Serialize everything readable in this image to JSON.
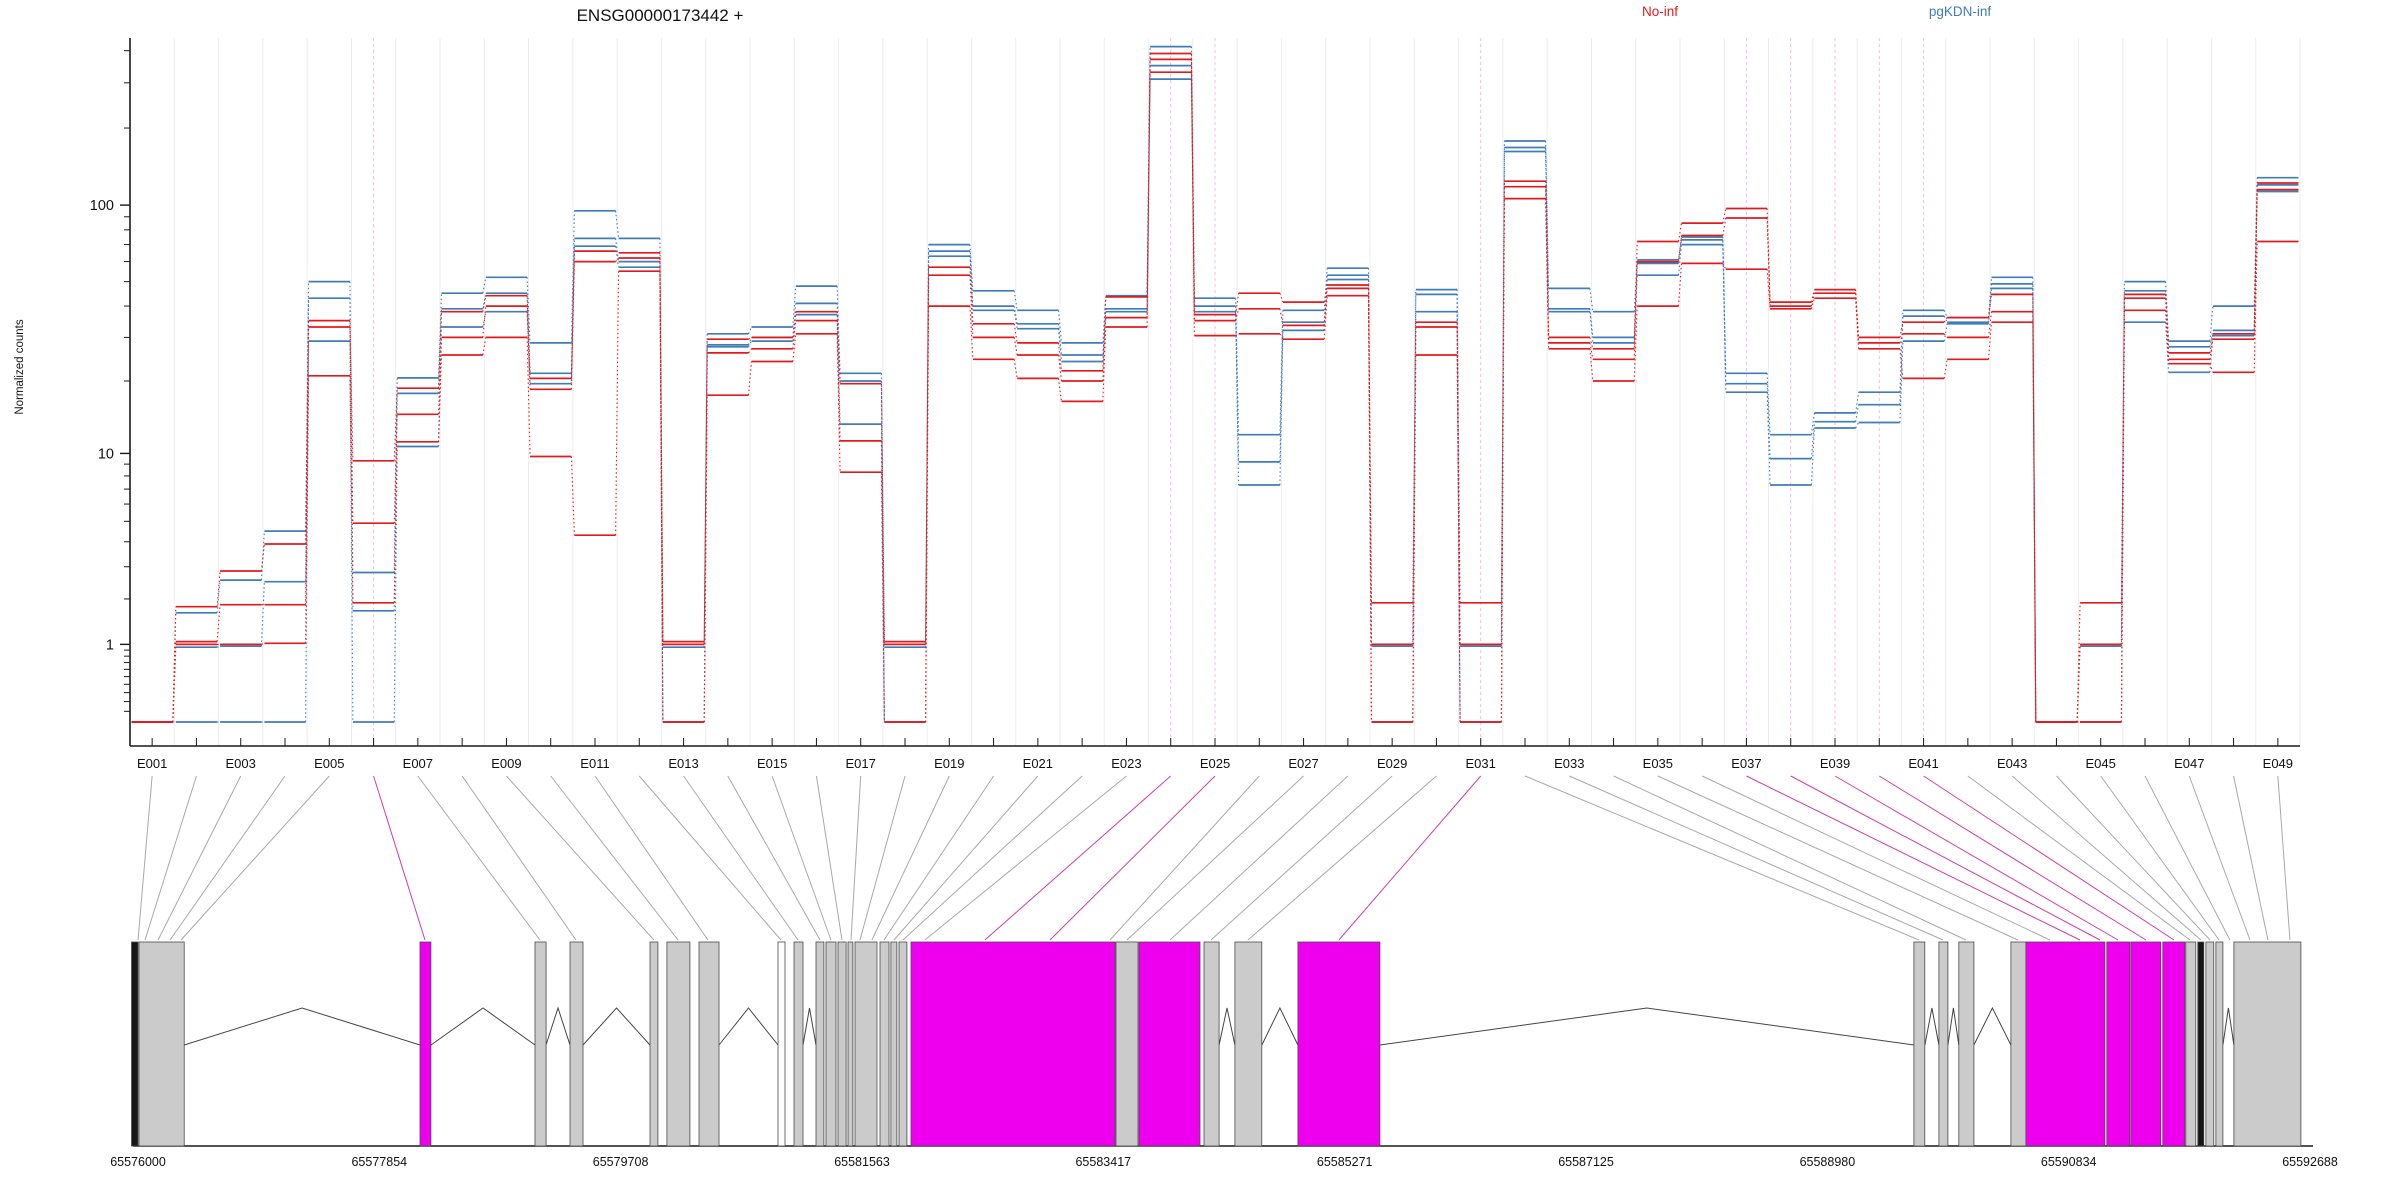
{
  "title": "ENSG00000173442 +",
  "legend": {
    "groups": [
      {
        "label": "No-inf",
        "color": "#e31a1c"
      },
      {
        "label": "pgKDN-inf",
        "color": "#3f7cba"
      }
    ]
  },
  "y_axis": {
    "label": "Normalized counts",
    "ticks": [
      1,
      10,
      100
    ],
    "scale": "log1p",
    "floor": 0,
    "max": 430
  },
  "chart_data": {
    "type": "line",
    "title": "ENSG00000173442 +",
    "xlabel": "exon bins",
    "ylabel": "Normalized counts",
    "ylim": [
      0,
      430
    ],
    "grid": "vertical",
    "legend_position": "top-right",
    "categories": [
      "E001",
      "E002",
      "E003",
      "E004",
      "E005",
      "E006",
      "E007",
      "E008",
      "E009",
      "E010",
      "E011",
      "E012",
      "E013",
      "E014",
      "E015",
      "E016",
      "E017",
      "E018",
      "E019",
      "E020",
      "E021",
      "E022",
      "E023",
      "E024",
      "E025",
      "E026",
      "E027",
      "E028",
      "E029",
      "E030",
      "E031",
      "E032",
      "E033",
      "E034",
      "E035",
      "E036",
      "E037",
      "E038",
      "E039",
      "E040",
      "E041",
      "E042",
      "E043",
      "E044",
      "E045",
      "E046",
      "E047",
      "E048",
      "E049"
    ],
    "label_every": 2,
    "significant_bins": [
      "E006",
      "E024",
      "E025",
      "E031",
      "E037",
      "E038",
      "E039",
      "E040",
      "E041"
    ],
    "series": [
      {
        "name": "No-inf sample 1",
        "group": "No-inf",
        "color": "#e31a1c",
        "values": [
          0,
          1.8,
          2.85,
          3.9,
          35,
          9.3,
          18.7,
          38,
          44,
          20.5,
          66,
          65,
          1.05,
          29.5,
          30,
          38,
          19.5,
          1.05,
          57,
          34,
          28.5,
          22,
          43.5,
          390,
          37,
          45,
          41.5,
          48.5,
          1.9,
          34.5,
          1.9,
          124,
          30,
          27,
          72,
          85,
          97,
          41.5,
          46.5,
          30,
          34.5,
          36,
          44.5,
          0,
          1.9,
          44.5,
          26,
          31,
          122
        ]
      },
      {
        "name": "No-inf sample 2",
        "group": "No-inf",
        "color": "#e31a1c",
        "values": [
          0,
          1.05,
          1.85,
          1.85,
          33,
          4.9,
          14.6,
          30,
          40,
          18.5,
          60,
          62,
          1.0,
          26,
          27,
          35,
          11.3,
          1.0,
          53,
          30,
          25.5,
          20,
          36,
          370,
          35,
          39,
          33.5,
          47,
          1.0,
          33,
          1.0,
          118,
          28.5,
          24.5,
          60,
          76,
          89,
          40,
          45,
          28.5,
          31,
          30,
          38,
          0,
          1.0,
          43,
          24.5,
          29.5,
          115
        ]
      },
      {
        "name": "No-inf sample 3",
        "group": "No-inf",
        "color": "#e31a1c",
        "values": [
          0,
          1.0,
          1.0,
          1.02,
          21,
          1.9,
          11.2,
          25.5,
          30,
          9.7,
          4.3,
          55,
          0,
          17.5,
          24,
          31,
          8.3,
          0,
          40,
          24.5,
          20.5,
          16.5,
          33,
          330,
          30.5,
          31,
          29.5,
          44,
          0,
          25.5,
          0,
          106,
          27,
          20,
          40,
          59,
          56,
          39,
          43,
          27,
          20.5,
          24.5,
          34.5,
          0,
          0,
          38.5,
          23.5,
          21.7,
          72
        ]
      },
      {
        "name": "pgKDN-inf sample 1",
        "group": "pgKDN-inf",
        "color": "#3f7cba",
        "values": [
          0,
          1.65,
          2.55,
          4.5,
          50,
          2.8,
          20.6,
          45,
          52,
          28.5,
          95,
          74,
          0.95,
          31,
          33,
          48,
          21.5,
          0.95,
          70,
          46,
          38.5,
          28.5,
          44,
          415,
          43,
          12,
          38.5,
          56.5,
          0.97,
          46.5,
          0.97,
          178,
          47,
          38,
          61,
          75,
          21.5,
          12,
          14.8,
          18,
          38.5,
          36,
          52,
          0,
          0.97,
          50,
          29,
          40,
          128
        ]
      },
      {
        "name": "pgKDN-inf sample 2",
        "group": "pgKDN-inf",
        "color": "#3f7cba",
        "values": [
          0,
          0.95,
          0.97,
          2.5,
          43,
          1.7,
          17.8,
          39,
          45,
          21.5,
          74,
          60,
          0,
          28,
          30,
          41,
          20,
          0,
          66,
          40,
          34,
          25.5,
          39,
          350,
          40,
          9.2,
          34.5,
          53,
          0,
          44.5,
          0,
          168,
          39,
          30,
          59,
          73,
          19.5,
          9.5,
          13.6,
          16,
          36.5,
          34.5,
          49,
          0,
          0,
          46,
          27.5,
          32,
          120
        ]
      },
      {
        "name": "pgKDN-inf sample 3",
        "group": "pgKDN-inf",
        "color": "#3f7cba",
        "values": [
          0,
          0,
          0,
          0,
          29,
          0,
          10.7,
          33,
          38,
          19.5,
          69,
          57,
          0,
          27.5,
          29,
          37,
          13.3,
          0,
          63,
          38.5,
          32.5,
          24,
          38,
          310,
          38,
          7.3,
          32,
          51,
          0,
          38,
          0,
          162,
          38,
          28.5,
          53,
          70,
          18,
          7.3,
          12.8,
          13.5,
          29,
          34,
          47,
          0,
          0,
          34.5,
          21.7,
          30.5,
          113
        ]
      }
    ]
  },
  "gene_model": {
    "axis_start": 65576000,
    "axis_end": 65592688,
    "coordinate_labels": [
      "65576000",
      "65577854",
      "65579708",
      "65581563",
      "65583417",
      "65585271",
      "65587125",
      "65588980",
      "65590834",
      "65592688"
    ],
    "exon_colors": {
      "gray": "#cbcbcb",
      "magenta": "#ee00ee",
      "black": "#161616",
      "white": "#ffffff"
    },
    "exons": [
      {
        "start": 65575950,
        "end": 65576000,
        "color": "black"
      },
      {
        "start": 65576008,
        "end": 65576355,
        "color": "gray"
      },
      {
        "start": 65578167,
        "end": 65578251,
        "color": "magenta"
      },
      {
        "start": 65579050,
        "end": 65579135,
        "color": "gray"
      },
      {
        "start": 65579319,
        "end": 65579419,
        "color": "gray"
      },
      {
        "start": 65579934,
        "end": 65579995,
        "color": "gray"
      },
      {
        "start": 65580064,
        "end": 65580241,
        "color": "gray"
      },
      {
        "start": 65580310,
        "end": 65580464,
        "color": "gray"
      },
      {
        "start": 65580917,
        "end": 65580971,
        "color": "white"
      },
      {
        "start": 65581040,
        "end": 65581109,
        "color": "gray"
      },
      {
        "start": 65581209,
        "end": 65581270,
        "color": "gray"
      },
      {
        "start": 65581286,
        "end": 65581363,
        "color": "gray"
      },
      {
        "start": 65581378,
        "end": 65581440,
        "color": "gray"
      },
      {
        "start": 65581455,
        "end": 65581493,
        "color": "gray"
      },
      {
        "start": 65581509,
        "end": 65581678,
        "color": "gray"
      },
      {
        "start": 65581701,
        "end": 65581770,
        "color": "gray"
      },
      {
        "start": 65581785,
        "end": 65581831,
        "color": "gray"
      },
      {
        "start": 65581847,
        "end": 65581908,
        "color": "gray"
      },
      {
        "start": 65581939,
        "end": 65583507,
        "color": "magenta"
      },
      {
        "start": 65583514,
        "end": 65583683,
        "color": "gray"
      },
      {
        "start": 65583691,
        "end": 65584160,
        "color": "magenta"
      },
      {
        "start": 65584190,
        "end": 65584306,
        "color": "gray"
      },
      {
        "start": 65584428,
        "end": 65584635,
        "color": "gray"
      },
      {
        "start": 65584912,
        "end": 65585542,
        "color": "magenta"
      },
      {
        "start": 65589645,
        "end": 65589729,
        "color": "gray"
      },
      {
        "start": 65589837,
        "end": 65589906,
        "color": "gray"
      },
      {
        "start": 65589990,
        "end": 65590106,
        "color": "gray"
      },
      {
        "start": 65590390,
        "end": 65590505,
        "color": "gray"
      },
      {
        "start": 65590505,
        "end": 65591112,
        "color": "magenta"
      },
      {
        "start": 65591127,
        "end": 65591304,
        "color": "magenta"
      },
      {
        "start": 65591312,
        "end": 65591542,
        "color": "magenta"
      },
      {
        "start": 65591557,
        "end": 65591726,
        "color": "magenta"
      },
      {
        "start": 65591734,
        "end": 65591811,
        "color": "gray"
      },
      {
        "start": 65591826,
        "end": 65591872,
        "color": "black"
      },
      {
        "start": 65591888,
        "end": 65591949,
        "color": "gray"
      },
      {
        "start": 65591965,
        "end": 65592019,
        "color": "gray"
      },
      {
        "start": 65592103,
        "end": 65592618,
        "color": "gray"
      }
    ],
    "bin_targets": [
      65576000,
      65576054,
      65576154,
      65576246,
      65576330,
      65578205,
      65579088,
      65579365,
      65579964,
      65580149,
      65580379,
      65580940,
      65581071,
      65581240,
      65581324,
      65581409,
      65581478,
      65581547,
      65581639,
      65581731,
      65581808,
      65581877,
      65582046,
      65582507,
      65583007,
      65583468,
      65583598,
      65583929,
      65584244,
      65584528,
      65585227,
      65589684,
      65589868,
      65590045,
      65590444,
      65590690,
      65590921,
      65591074,
      65591213,
      65591428,
      65591643,
      65591766,
      65591850,
      65591920,
      65591989,
      65592073,
      65592227,
      65592365,
      65592534
    ],
    "fan_colors": {
      "normal": "#a8a8a8",
      "significant": "#cf3ea8"
    }
  }
}
